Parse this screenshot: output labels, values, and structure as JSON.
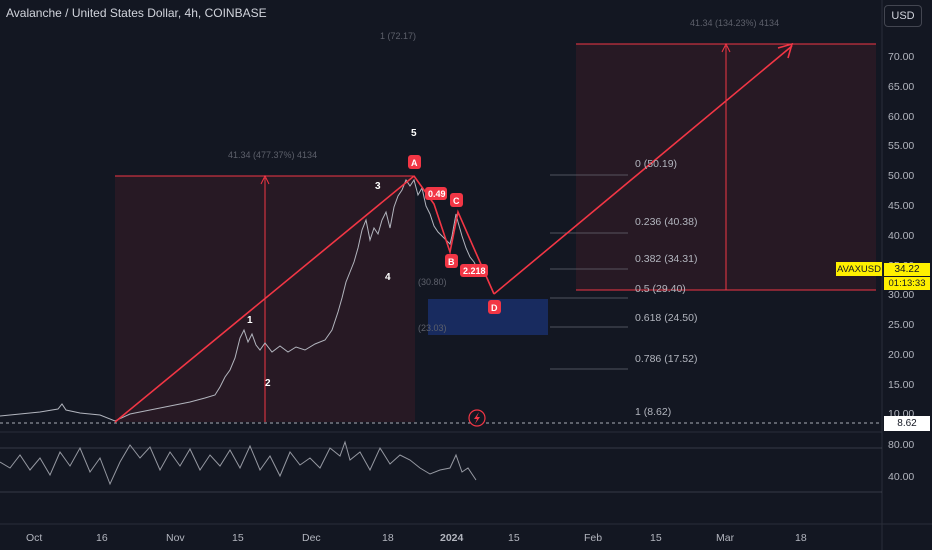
{
  "header": {
    "title": "Avalanche / United States Dollar, 4h, COINBASE",
    "currency_button": "USD"
  },
  "price_axis": {
    "ticks": [
      "70.00",
      "65.00",
      "60.00",
      "55.00",
      "50.00",
      "45.00",
      "40.00",
      "35.00",
      "30.00",
      "25.00",
      "20.00",
      "15.00",
      "10.00"
    ]
  },
  "rsi_axis": {
    "ticks": [
      "80.00",
      "40.00"
    ]
  },
  "time_axis": {
    "ticks": [
      "Oct",
      "16",
      "Nov",
      "15",
      "Dec",
      "18",
      "2024",
      "15",
      "Feb",
      "15",
      "Mar",
      "18"
    ]
  },
  "fib_levels": [
    {
      "label": "0 (50.19)"
    },
    {
      "label": "0.236 (40.38)"
    },
    {
      "label": "0.382 (34.31)"
    },
    {
      "label": "0.5 (29.40)"
    },
    {
      "label": "0.618 (24.50)"
    },
    {
      "label": "0.786 (17.52)"
    },
    {
      "label": "1 (8.62)"
    }
  ],
  "annotations": {
    "left_measure": "41.34 (477.37%) 4134",
    "right_measure": "41.34 (134.23%) 4134",
    "top_level": "1 (72.17)",
    "box_top": "(30.80)",
    "box_bottom": "(23.03)",
    "ratio_049": "0.49",
    "ratio_2218": "2.218"
  },
  "waves": {
    "w1": "1",
    "w2": "2",
    "w3": "3",
    "w4": "4",
    "w5": "5"
  },
  "abcd": {
    "a": "A",
    "b": "B",
    "c": "C",
    "d": "D"
  },
  "price_tags": {
    "symbol": "AVAXUSD",
    "price": "34.22",
    "timer": "01:13:33",
    "low": "8.62"
  },
  "colors": {
    "background": "#131722",
    "accent_red": "#f23645",
    "price_yellow": "#fff000",
    "zone_blue": "#2962ff"
  }
}
